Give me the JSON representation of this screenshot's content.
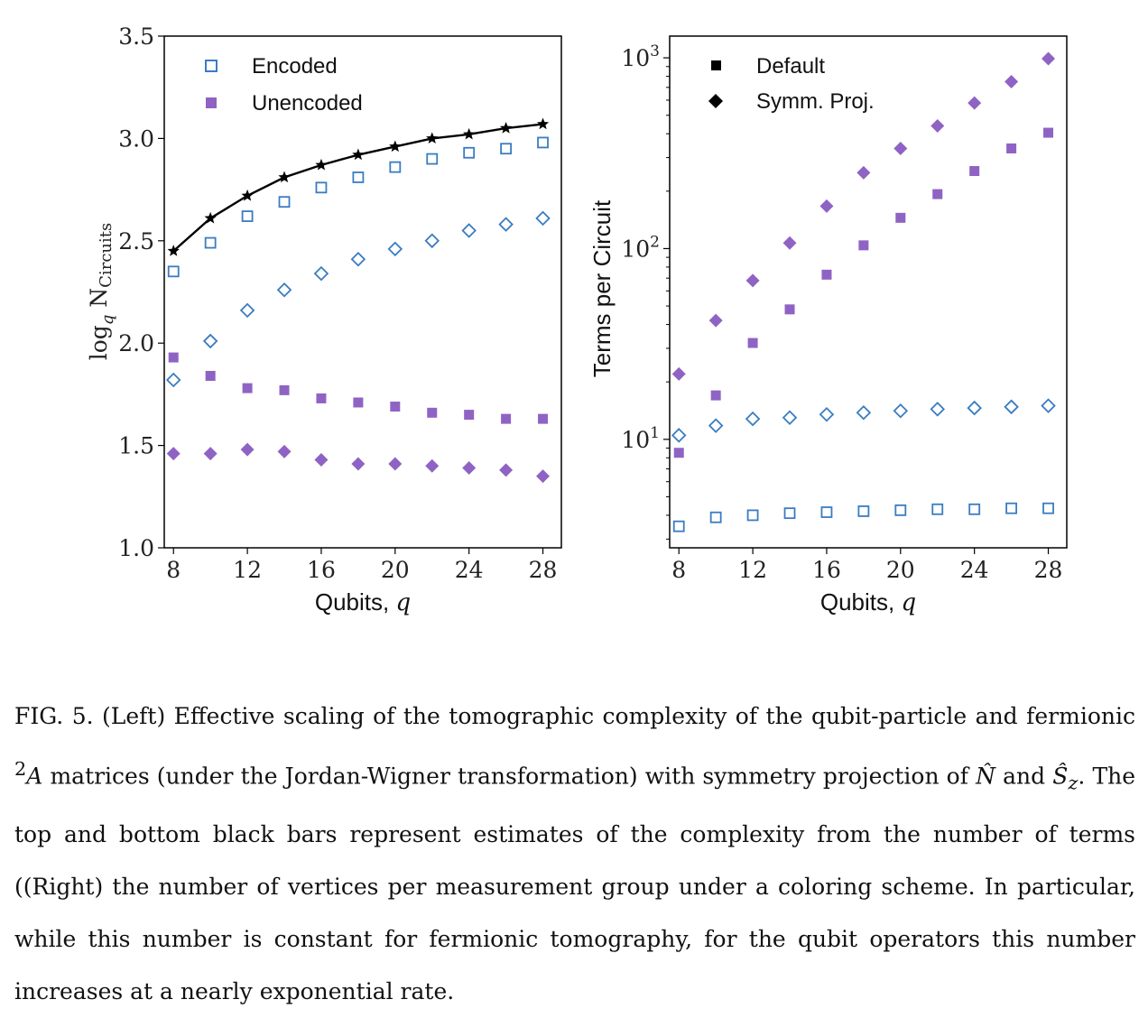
{
  "chart_data": [
    {
      "type": "scatter",
      "xlabel": "Qubits, q",
      "ylabel": "log_q N_Circuits",
      "ylim": [
        1.0,
        3.5
      ],
      "xlim": [
        7.5,
        29
      ],
      "xticks": [
        8,
        12,
        16,
        20,
        24,
        28
      ],
      "yticks": [
        1.0,
        1.5,
        2.0,
        2.5,
        3.0,
        3.5
      ],
      "ytick_labels": [
        "1.0",
        "1.5",
        "2.0",
        "2.5",
        "3.0",
        "3.5"
      ],
      "legend": {
        "placement": "top-left",
        "entries": [
          "Encoded",
          "Unencoded"
        ]
      },
      "x": [
        8,
        10,
        12,
        14,
        16,
        18,
        20,
        22,
        24,
        26,
        28
      ],
      "series": [
        {
          "name": "Encoded",
          "marker": "open-square",
          "color": "#3a7cc2",
          "values": [
            2.35,
            2.49,
            2.62,
            2.69,
            2.76,
            2.81,
            2.86,
            2.9,
            2.93,
            2.95,
            2.98
          ]
        },
        {
          "marker": "open-diamond",
          "color": "#3a7cc2",
          "values": [
            1.82,
            2.01,
            2.16,
            2.26,
            2.34,
            2.41,
            2.46,
            2.5,
            2.55,
            2.58,
            2.61
          ]
        },
        {
          "name": "Unencoded",
          "marker": "filled-square",
          "color": "#8f63c4",
          "values": [
            1.93,
            1.84,
            1.78,
            1.77,
            1.73,
            1.71,
            1.69,
            1.66,
            1.65,
            1.63,
            1.63
          ]
        },
        {
          "marker": "filled-diamond",
          "color": "#8f63c4",
          "values": [
            1.46,
            1.46,
            1.48,
            1.47,
            1.43,
            1.41,
            1.41,
            1.4,
            1.39,
            1.38,
            1.35
          ]
        },
        {
          "marker": "star-line",
          "color": "#000000",
          "values": [
            2.45,
            2.61,
            2.72,
            2.81,
            2.87,
            2.92,
            2.96,
            3.0,
            3.02,
            3.05,
            3.07
          ]
        }
      ]
    },
    {
      "type": "scatter",
      "xlabel": "Qubits, q",
      "ylabel": "Terms per Circuit",
      "yscale": "log",
      "ylim": [
        2.7,
        1300
      ],
      "xlim": [
        7.5,
        29
      ],
      "xticks": [
        8,
        12,
        16,
        20,
        24,
        28
      ],
      "yticks": [
        10,
        100,
        1000
      ],
      "ytick_labels": [
        [
          "10",
          "1"
        ],
        [
          "10",
          "2"
        ],
        [
          "10",
          "3"
        ]
      ],
      "legend": {
        "placement": "top-left",
        "entries": [
          "Default",
          "Symm. Proj."
        ]
      },
      "x": [
        8,
        10,
        12,
        14,
        16,
        18,
        20,
        22,
        24,
        26,
        28
      ],
      "series": [
        {
          "name": "Symm. Proj.",
          "marker": "filled-diamond",
          "color": "#8f63c4",
          "values": [
            22,
            42,
            68,
            107,
            167,
            250,
            335,
            440,
            580,
            750,
            990
          ]
        },
        {
          "name": "Default",
          "marker": "filled-square",
          "color": "#8f63c4",
          "values": [
            8.5,
            17,
            32,
            48,
            73,
            104,
            145,
            193,
            255,
            335,
            405
          ]
        },
        {
          "marker": "open-diamond",
          "color": "#3a7cc2",
          "values": [
            10.5,
            11.8,
            12.8,
            13.0,
            13.5,
            13.8,
            14.1,
            14.4,
            14.6,
            14.8,
            15.0
          ]
        },
        {
          "marker": "open-square",
          "color": "#3a7cc2",
          "values": [
            3.5,
            3.9,
            4.0,
            4.1,
            4.15,
            4.2,
            4.25,
            4.3,
            4.3,
            4.35,
            4.35
          ]
        }
      ]
    }
  ],
  "caption": {
    "label": "FIG. 5.",
    "part1": "(Left) Effective scaling of the tomographic complexity of the qubit-particle and fermionic",
    "superscript": "2",
    "matrix": "A",
    "part2": "matrices (under the Jordan-Wigner transformation) with symmetry projection of",
    "op1": "N̂",
    "and": "and",
    "op2": "Ŝ",
    "op2_sub": "z",
    "part3": ". The top and bottom black bars represent estimates of the complexity from the number of terms ((Right) the number of vertices per measurement group under a coloring scheme. In particular, while this number is constant for fermionic tomography, for the qubit operators this number increases at a nearly exponential rate."
  }
}
